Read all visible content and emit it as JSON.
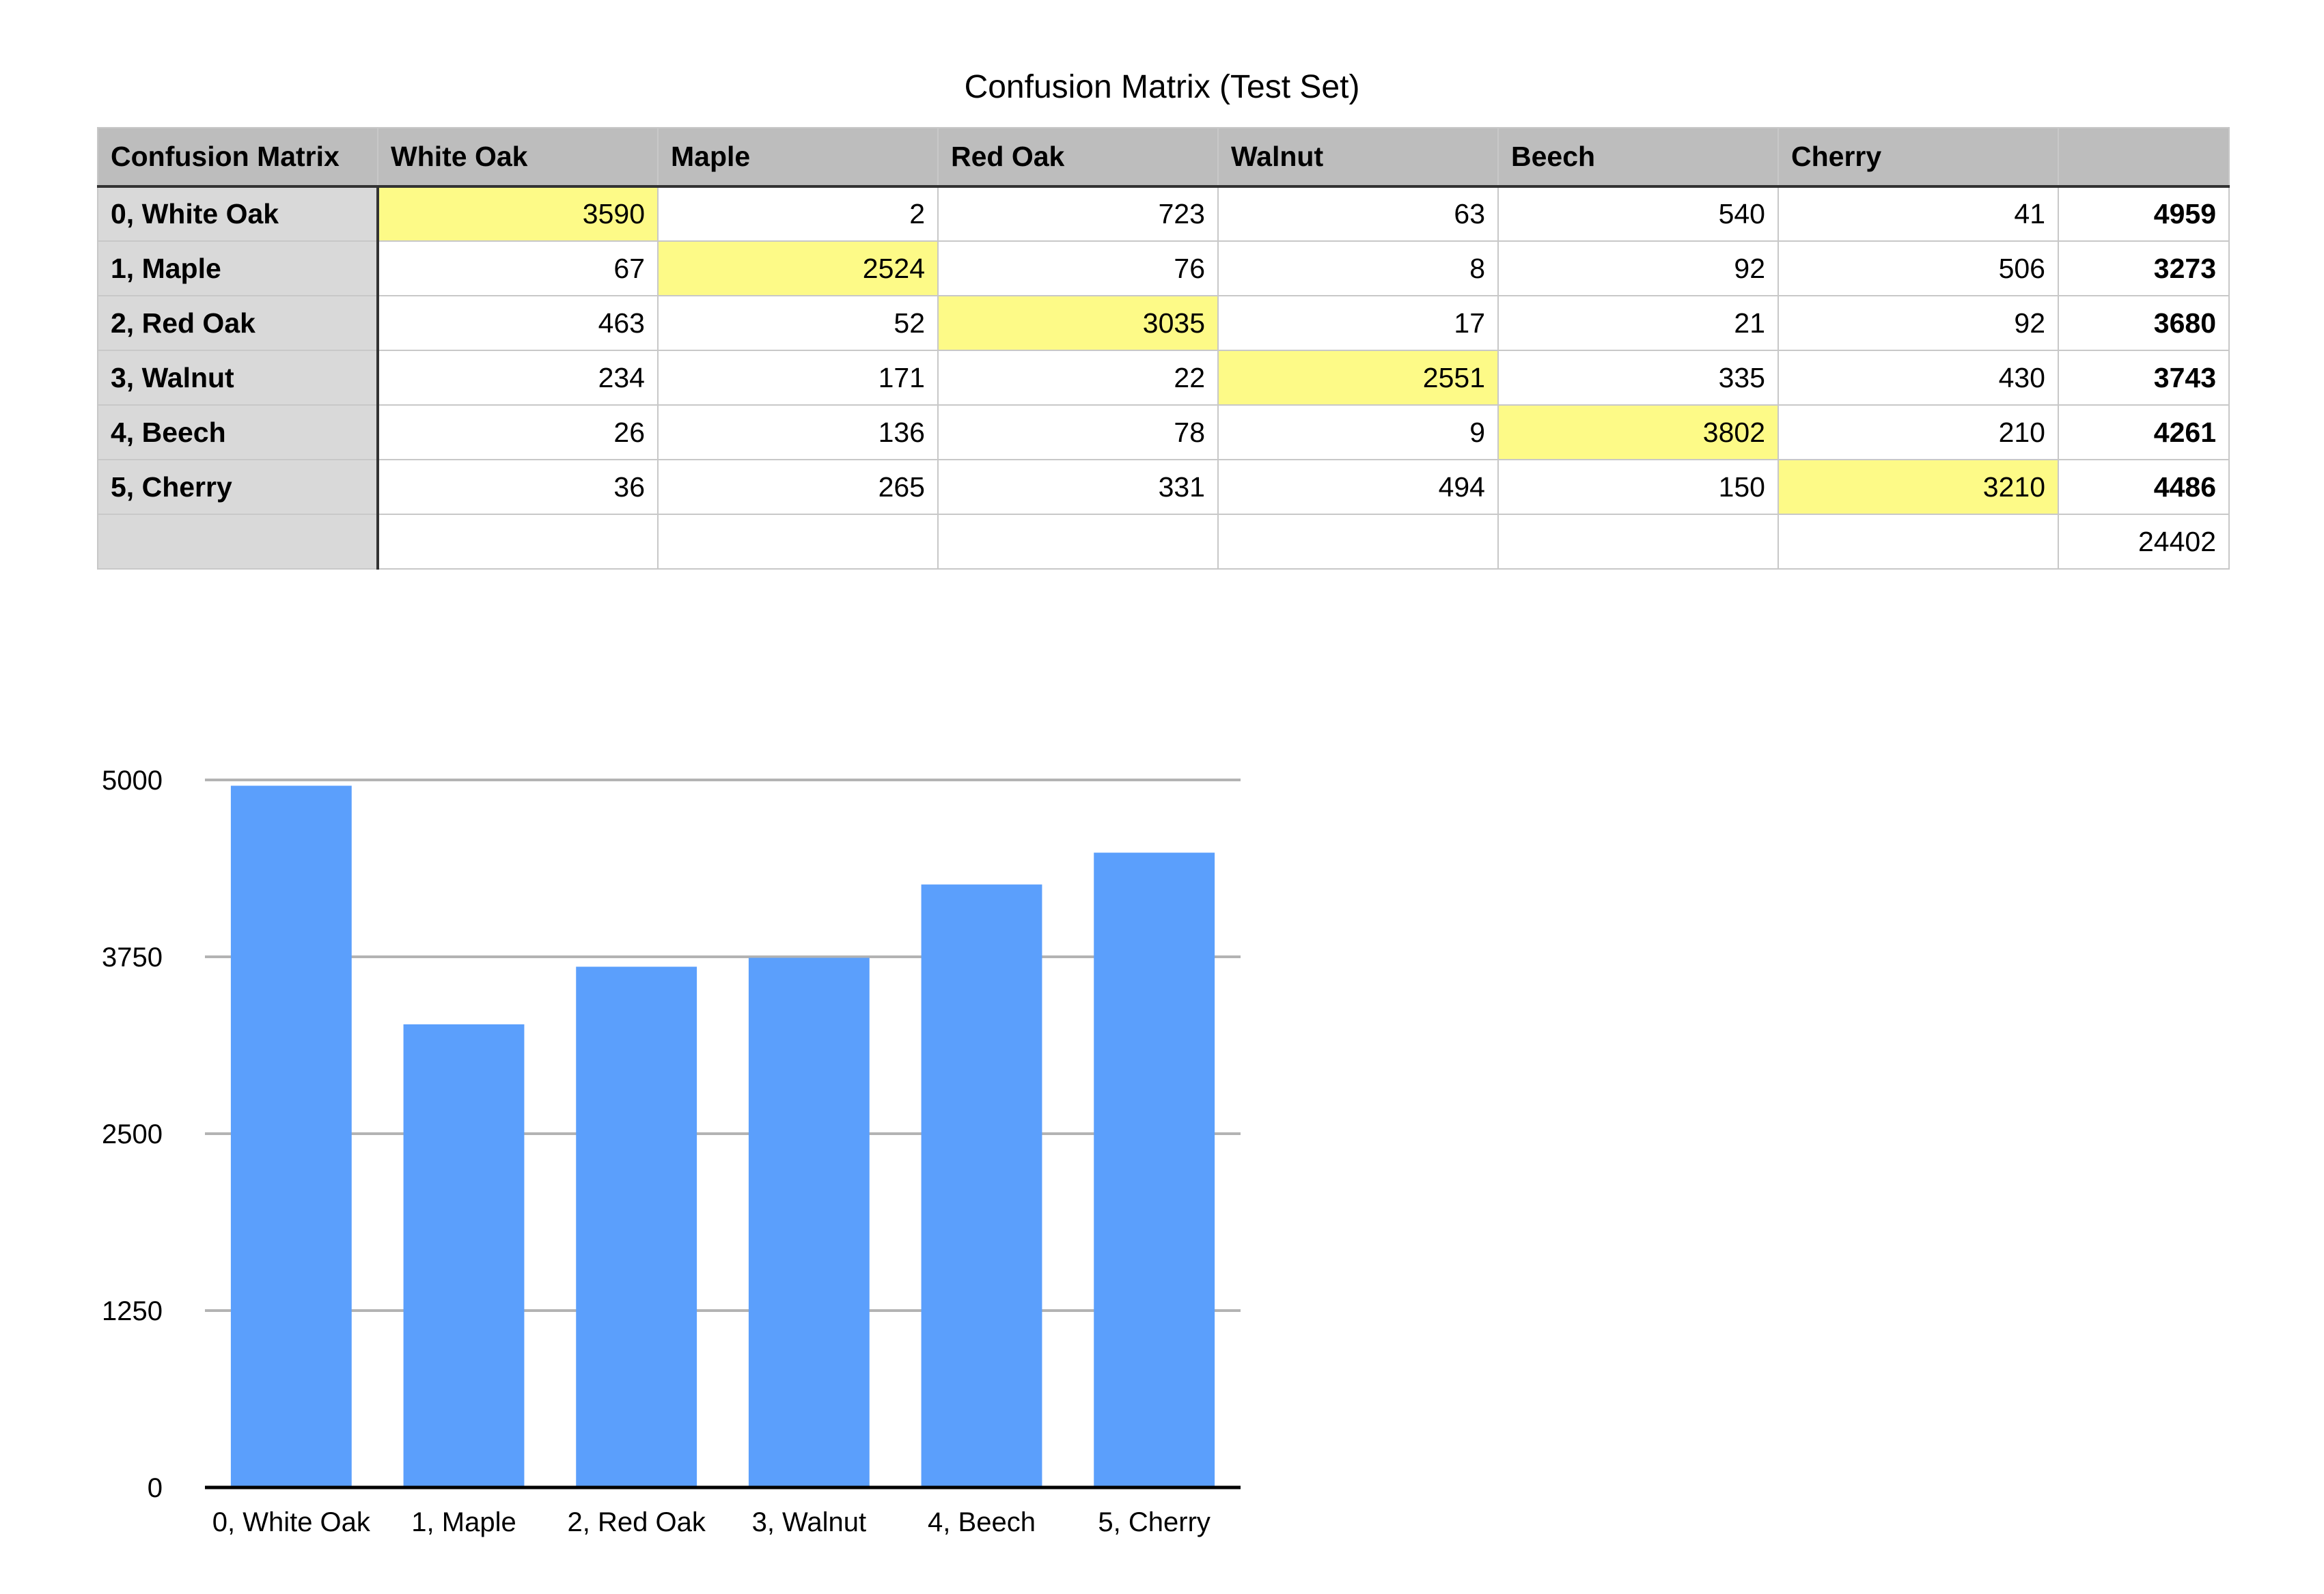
{
  "table": {
    "title": "Confusion Matrix (Test Set)",
    "corner_label": "Confusion Matrix",
    "columns": [
      "White Oak",
      "Maple",
      "Red Oak",
      "Walnut",
      "Beech",
      "Cherry",
      ""
    ],
    "rows": [
      {
        "label": "0, White Oak",
        "cells": [
          "3590",
          "2",
          "723",
          "63",
          "540",
          "41"
        ],
        "total": "4959"
      },
      {
        "label": "1, Maple",
        "cells": [
          "67",
          "2524",
          "76",
          "8",
          "92",
          "506"
        ],
        "total": "3273"
      },
      {
        "label": "2, Red Oak",
        "cells": [
          "463",
          "52",
          "3035",
          "17",
          "21",
          "92"
        ],
        "total": "3680"
      },
      {
        "label": "3, Walnut",
        "cells": [
          "234",
          "171",
          "22",
          "2551",
          "335",
          "430"
        ],
        "total": "3743"
      },
      {
        "label": "4, Beech",
        "cells": [
          "26",
          "136",
          "78",
          "9",
          "3802",
          "210"
        ],
        "total": "4261"
      },
      {
        "label": "5, Cherry",
        "cells": [
          "36",
          "265",
          "331",
          "494",
          "150",
          "3210"
        ],
        "total": "4486"
      }
    ],
    "grand_total": "24402",
    "colors": {
      "header_bg": "#bdbdbd",
      "row_header_bg": "#d9d9d9",
      "diagonal_highlight": "#fdfa87"
    }
  },
  "chart_data": {
    "type": "bar",
    "title": "",
    "xlabel": "",
    "ylabel": "",
    "categories": [
      "0, White Oak",
      "1, Maple",
      "2, Red Oak",
      "3, Walnut",
      "4, Beech",
      "5, Cherry"
    ],
    "values": [
      4959,
      3273,
      3680,
      3743,
      4261,
      4486
    ],
    "ylim": [
      0,
      5000
    ],
    "yticks": [
      0,
      1250,
      2500,
      3750,
      5000
    ],
    "ytick_labels": [
      "0",
      "1250",
      "2500",
      "3750",
      "5000"
    ],
    "grid": true,
    "legend": "none",
    "bar_color": "#5b9ffc",
    "grid_color": "#b3b3b3",
    "axis_color": "#000000"
  }
}
